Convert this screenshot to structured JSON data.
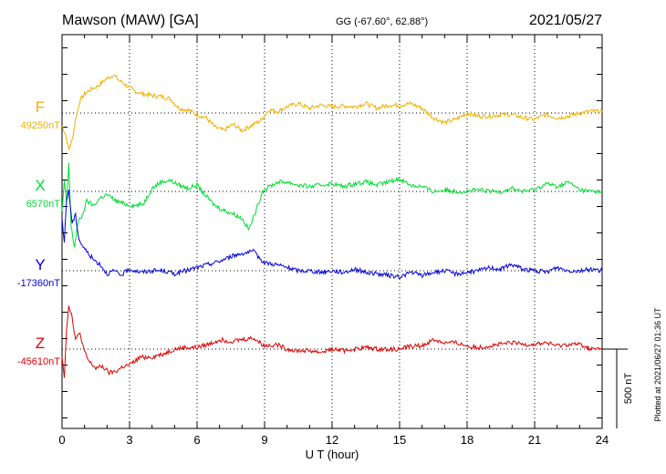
{
  "header": {
    "station": "Mawson (MAW)  [GA]",
    "coords": "GG (-67.60°,  62.88°)",
    "date": "2021/05/27"
  },
  "footer": {
    "plotted": "Plotted at 2021/06/27 01:36 UT"
  },
  "chart_data": {
    "type": "line",
    "title": "",
    "xlabel": "U T (hour)",
    "ylabel": "",
    "xlim": [
      0,
      24
    ],
    "x_ticks": [
      0,
      3,
      6,
      9,
      12,
      15,
      18,
      21,
      24
    ],
    "x_tick_labels": [
      "0",
      "3",
      "6",
      "9",
      "12",
      "15",
      "18",
      "21",
      "24"
    ],
    "grid": "vertical-dotted",
    "scale_bar": {
      "value": 500,
      "label": "500 nT"
    },
    "series": [
      {
        "name": "F",
        "baseline_label": "49250nT",
        "color": "#f0b000",
        "baseline_nT": 49250,
        "x": [
          0,
          0.15,
          0.3,
          0.45,
          0.6,
          0.8,
          1.0,
          1.3,
          1.6,
          2.0,
          2.3,
          2.5,
          2.8,
          3.2,
          3.6,
          4.0,
          4.4,
          4.8,
          5.2,
          5.6,
          6.0,
          6.4,
          6.8,
          7.2,
          7.6,
          8.0,
          8.4,
          8.8,
          9.2,
          9.6,
          10.0,
          10.5,
          11.0,
          11.5,
          12.0,
          12.5,
          13.0,
          13.5,
          14.0,
          14.5,
          15.0,
          15.5,
          16.0,
          16.5,
          17.0,
          17.5,
          18.0,
          18.5,
          19.0,
          19.5,
          20.0,
          20.5,
          21.0,
          21.5,
          22.0,
          22.5,
          23.0,
          23.5,
          24.0
        ],
        "values": [
          -80,
          -130,
          -230,
          -170,
          -40,
          80,
          120,
          150,
          170,
          220,
          240,
          210,
          180,
          140,
          120,
          110,
          105,
          90,
          30,
          20,
          -10,
          -30,
          -90,
          -110,
          -70,
          -110,
          -80,
          -50,
          20,
          10,
          40,
          60,
          30,
          50,
          40,
          45,
          40,
          60,
          30,
          50,
          50,
          60,
          30,
          -30,
          -60,
          -40,
          0,
          -20,
          -20,
          -10,
          -10,
          -30,
          -40,
          -10,
          -30,
          -20,
          0,
          10,
          10
        ]
      },
      {
        "name": "X",
        "baseline_label": "6570nT",
        "color": "#00dd33",
        "baseline_nT": 6570,
        "x": [
          0,
          0.1,
          0.2,
          0.3,
          0.4,
          0.55,
          0.7,
          0.9,
          1.1,
          1.4,
          1.7,
          2.0,
          2.4,
          2.8,
          3.2,
          3.6,
          4.0,
          4.4,
          4.8,
          5.2,
          5.6,
          6.0,
          6.4,
          6.8,
          7.2,
          7.6,
          8.0,
          8.3,
          8.6,
          8.9,
          9.2,
          9.6,
          10.0,
          10.5,
          11.0,
          11.5,
          12.0,
          12.5,
          13.0,
          13.5,
          14.0,
          14.5,
          15.0,
          15.5,
          16.0,
          16.5,
          17.0,
          17.5,
          18.0,
          18.5,
          19.0,
          19.5,
          20.0,
          20.5,
          21.0,
          21.5,
          22.0,
          22.5,
          23.0,
          23.5,
          24.0
        ],
        "values": [
          -130,
          60,
          -80,
          180,
          -220,
          -350,
          -200,
          -150,
          -60,
          -90,
          -40,
          -20,
          -60,
          -80,
          -90,
          -80,
          20,
          60,
          70,
          40,
          20,
          40,
          -30,
          -90,
          -120,
          -140,
          -170,
          -240,
          -130,
          0,
          30,
          60,
          60,
          40,
          30,
          40,
          50,
          30,
          50,
          60,
          40,
          60,
          80,
          40,
          30,
          0,
          10,
          0,
          0,
          10,
          0,
          0,
          20,
          0,
          10,
          50,
          30,
          60,
          10,
          0,
          0
        ]
      },
      {
        "name": "Y",
        "baseline_label": "-17360nT",
        "color": "#0000dd",
        "baseline_nT": -17360,
        "x": [
          0,
          0.1,
          0.2,
          0.3,
          0.45,
          0.6,
          0.75,
          0.9,
          1.1,
          1.4,
          1.7,
          2.0,
          2.3,
          2.6,
          3.0,
          3.5,
          4.0,
          4.5,
          5.0,
          5.5,
          6.0,
          6.5,
          7.0,
          7.5,
          8.0,
          8.5,
          9.0,
          9.5,
          10.0,
          10.5,
          11.0,
          11.5,
          12.0,
          12.5,
          13.0,
          13.5,
          14.0,
          14.5,
          15.0,
          15.5,
          16.0,
          16.5,
          17.0,
          17.5,
          18.0,
          18.5,
          19.0,
          19.5,
          20.0,
          20.5,
          21.0,
          21.5,
          22.0,
          22.5,
          23.0,
          23.5,
          24.0
        ],
        "values": [
          320,
          180,
          450,
          500,
          300,
          350,
          200,
          160,
          120,
          70,
          40,
          -20,
          0,
          -30,
          10,
          -10,
          0,
          0,
          -20,
          0,
          20,
          40,
          60,
          90,
          110,
          120,
          50,
          40,
          20,
          0,
          0,
          -10,
          0,
          -10,
          10,
          -10,
          -20,
          -30,
          -40,
          -10,
          -30,
          -10,
          0,
          -20,
          -10,
          0,
          20,
          10,
          40,
          10,
          0,
          -10,
          20,
          0,
          0,
          10,
          0
        ]
      },
      {
        "name": "Z",
        "baseline_label": "-45610nT",
        "color": "#dd0000",
        "baseline_nT": -45610,
        "x": [
          0,
          0.1,
          0.2,
          0.3,
          0.45,
          0.6,
          0.8,
          1.0,
          1.2,
          1.5,
          1.8,
          2.1,
          2.4,
          2.7,
          3.0,
          3.5,
          4.0,
          4.5,
          5.0,
          5.5,
          6.0,
          6.5,
          7.0,
          7.5,
          8.0,
          8.5,
          9.0,
          9.5,
          10.0,
          10.5,
          11.0,
          11.5,
          12.0,
          12.5,
          13.0,
          13.5,
          14.0,
          14.5,
          15.0,
          15.5,
          16.0,
          16.5,
          17.0,
          17.5,
          18.0,
          18.5,
          19.0,
          19.5,
          20.0,
          20.5,
          21.0,
          21.5,
          22.0,
          22.5,
          23.0,
          23.5,
          24.0
        ],
        "values": [
          -40,
          -170,
          120,
          280,
          200,
          60,
          100,
          -20,
          -80,
          -120,
          -110,
          -150,
          -140,
          -110,
          -100,
          -50,
          -50,
          -30,
          0,
          10,
          10,
          30,
          60,
          50,
          60,
          70,
          20,
          30,
          0,
          -10,
          -10,
          -20,
          0,
          -10,
          0,
          10,
          0,
          0,
          0,
          20,
          20,
          60,
          40,
          40,
          20,
          10,
          20,
          30,
          40,
          30,
          30,
          40,
          20,
          30,
          30,
          0,
          0
        ]
      }
    ]
  }
}
